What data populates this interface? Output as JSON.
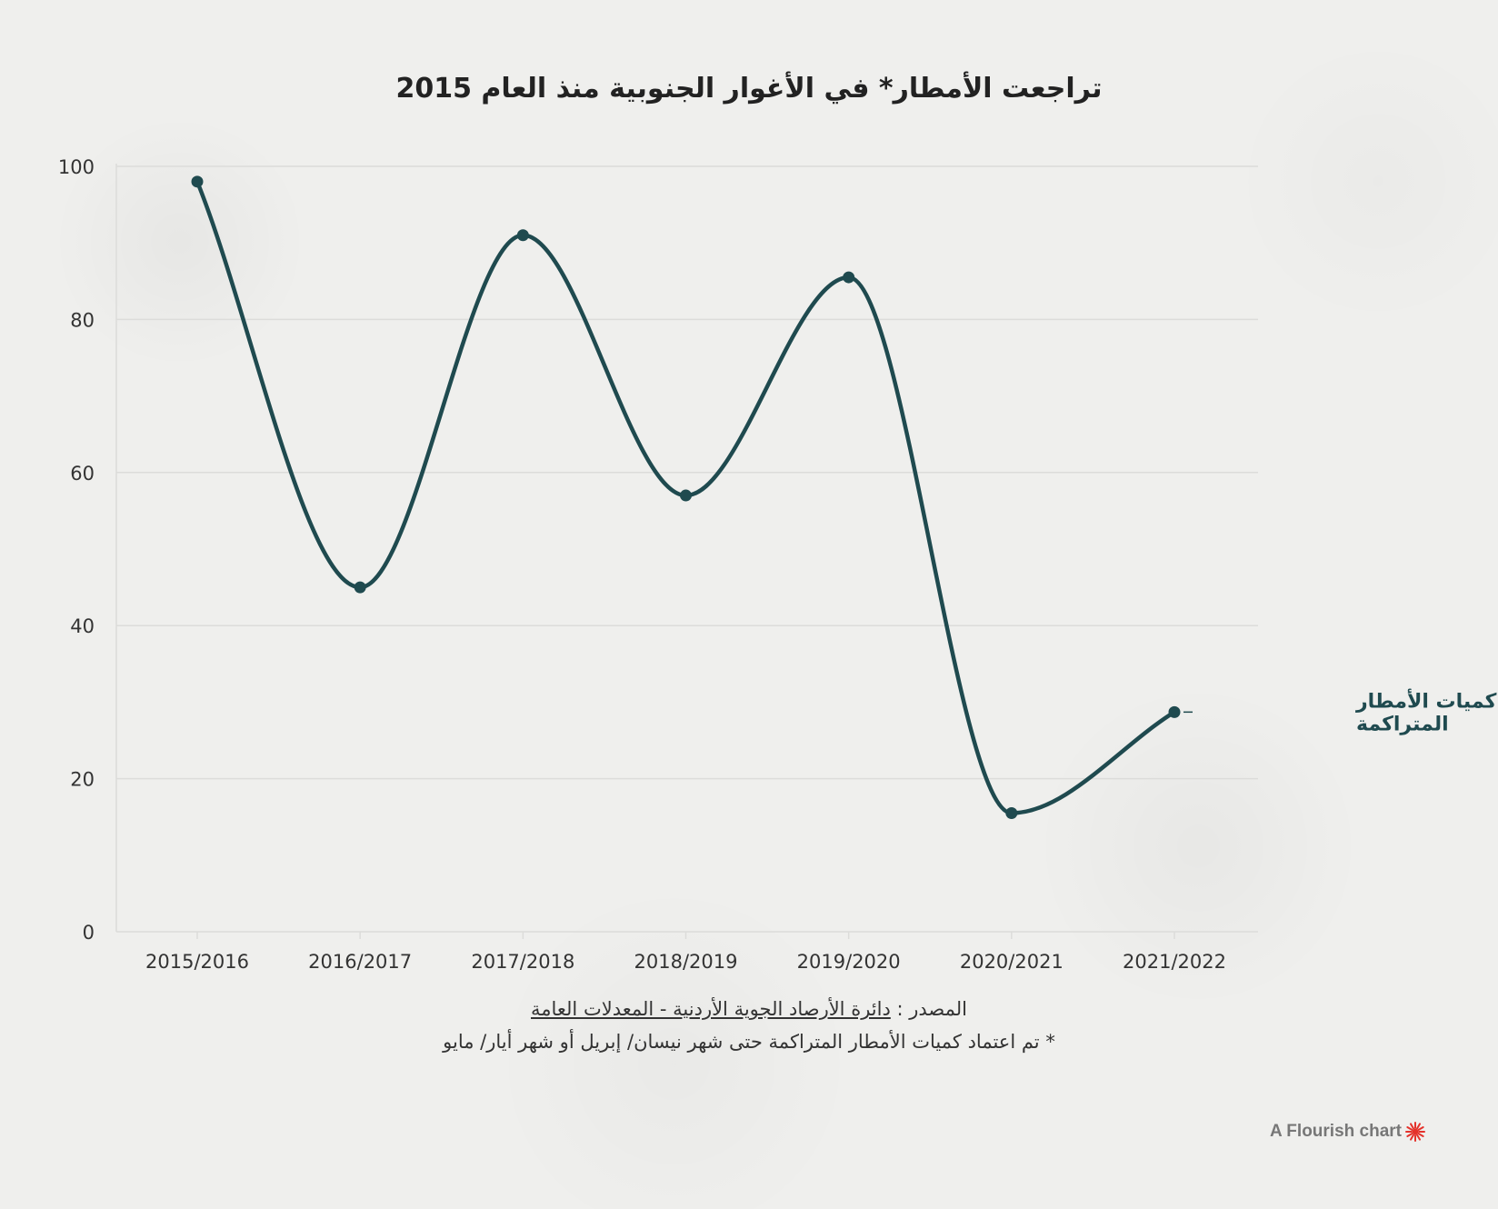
{
  "colors": {
    "line": "#1f4a4f",
    "grid": "#dcdcda",
    "axis_text": "#333333",
    "brand_accent": "#e4322b"
  },
  "chart_data": {
    "type": "line",
    "title": "تراجعت الأمطار* في الأغوار الجنوبية منذ العام 2015",
    "categories": [
      "2015/2016",
      "2016/2017",
      "2017/2018",
      "2018/2019",
      "2019/2020",
      "2020/2021",
      "2021/2022"
    ],
    "series": [
      {
        "name": "كميات الأمطار المتراكمة",
        "label_lines": [
          "كميات الأمطار",
          "المتراكمة"
        ],
        "values": [
          98,
          45,
          91,
          57,
          85.5,
          15.5,
          28.7
        ]
      }
    ],
    "ylim": [
      0,
      100
    ],
    "yticks": [
      0,
      20,
      40,
      60,
      80,
      100
    ],
    "xlabel": "",
    "ylabel": "",
    "grid": true,
    "curve": "smooth"
  },
  "footer": {
    "source_prefix": "المصدر :",
    "source_link": "دائرة الأرصاد الجوية الأردنية - المعدلات العامة",
    "note": "* تم اعتماد كميات الأمطار المتراكمة حتى شهر نيسان/ إبريل أو شهر أيار/ مايو"
  },
  "credit": {
    "label": "A Flourish chart",
    "icon": "flourish-logo-icon"
  }
}
